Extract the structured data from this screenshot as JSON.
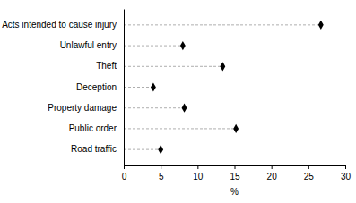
{
  "chart_data": {
    "type": "dot",
    "orientation": "horizontal",
    "x_label": "%",
    "categories": [
      "Acts intended to cause injury",
      "Unlawful entry",
      "Theft",
      "Deception",
      "Property damage",
      "Public order",
      "Road traffic"
    ],
    "values": [
      26.7,
      8.0,
      13.4,
      4.0,
      8.2,
      15.2,
      5.0
    ],
    "color": "#000000",
    "marker": "diamond",
    "line_style": "dashed",
    "xlim": [
      0,
      30
    ],
    "xticks": [
      0,
      5,
      10,
      15,
      20,
      25,
      30
    ],
    "grid": false
  }
}
